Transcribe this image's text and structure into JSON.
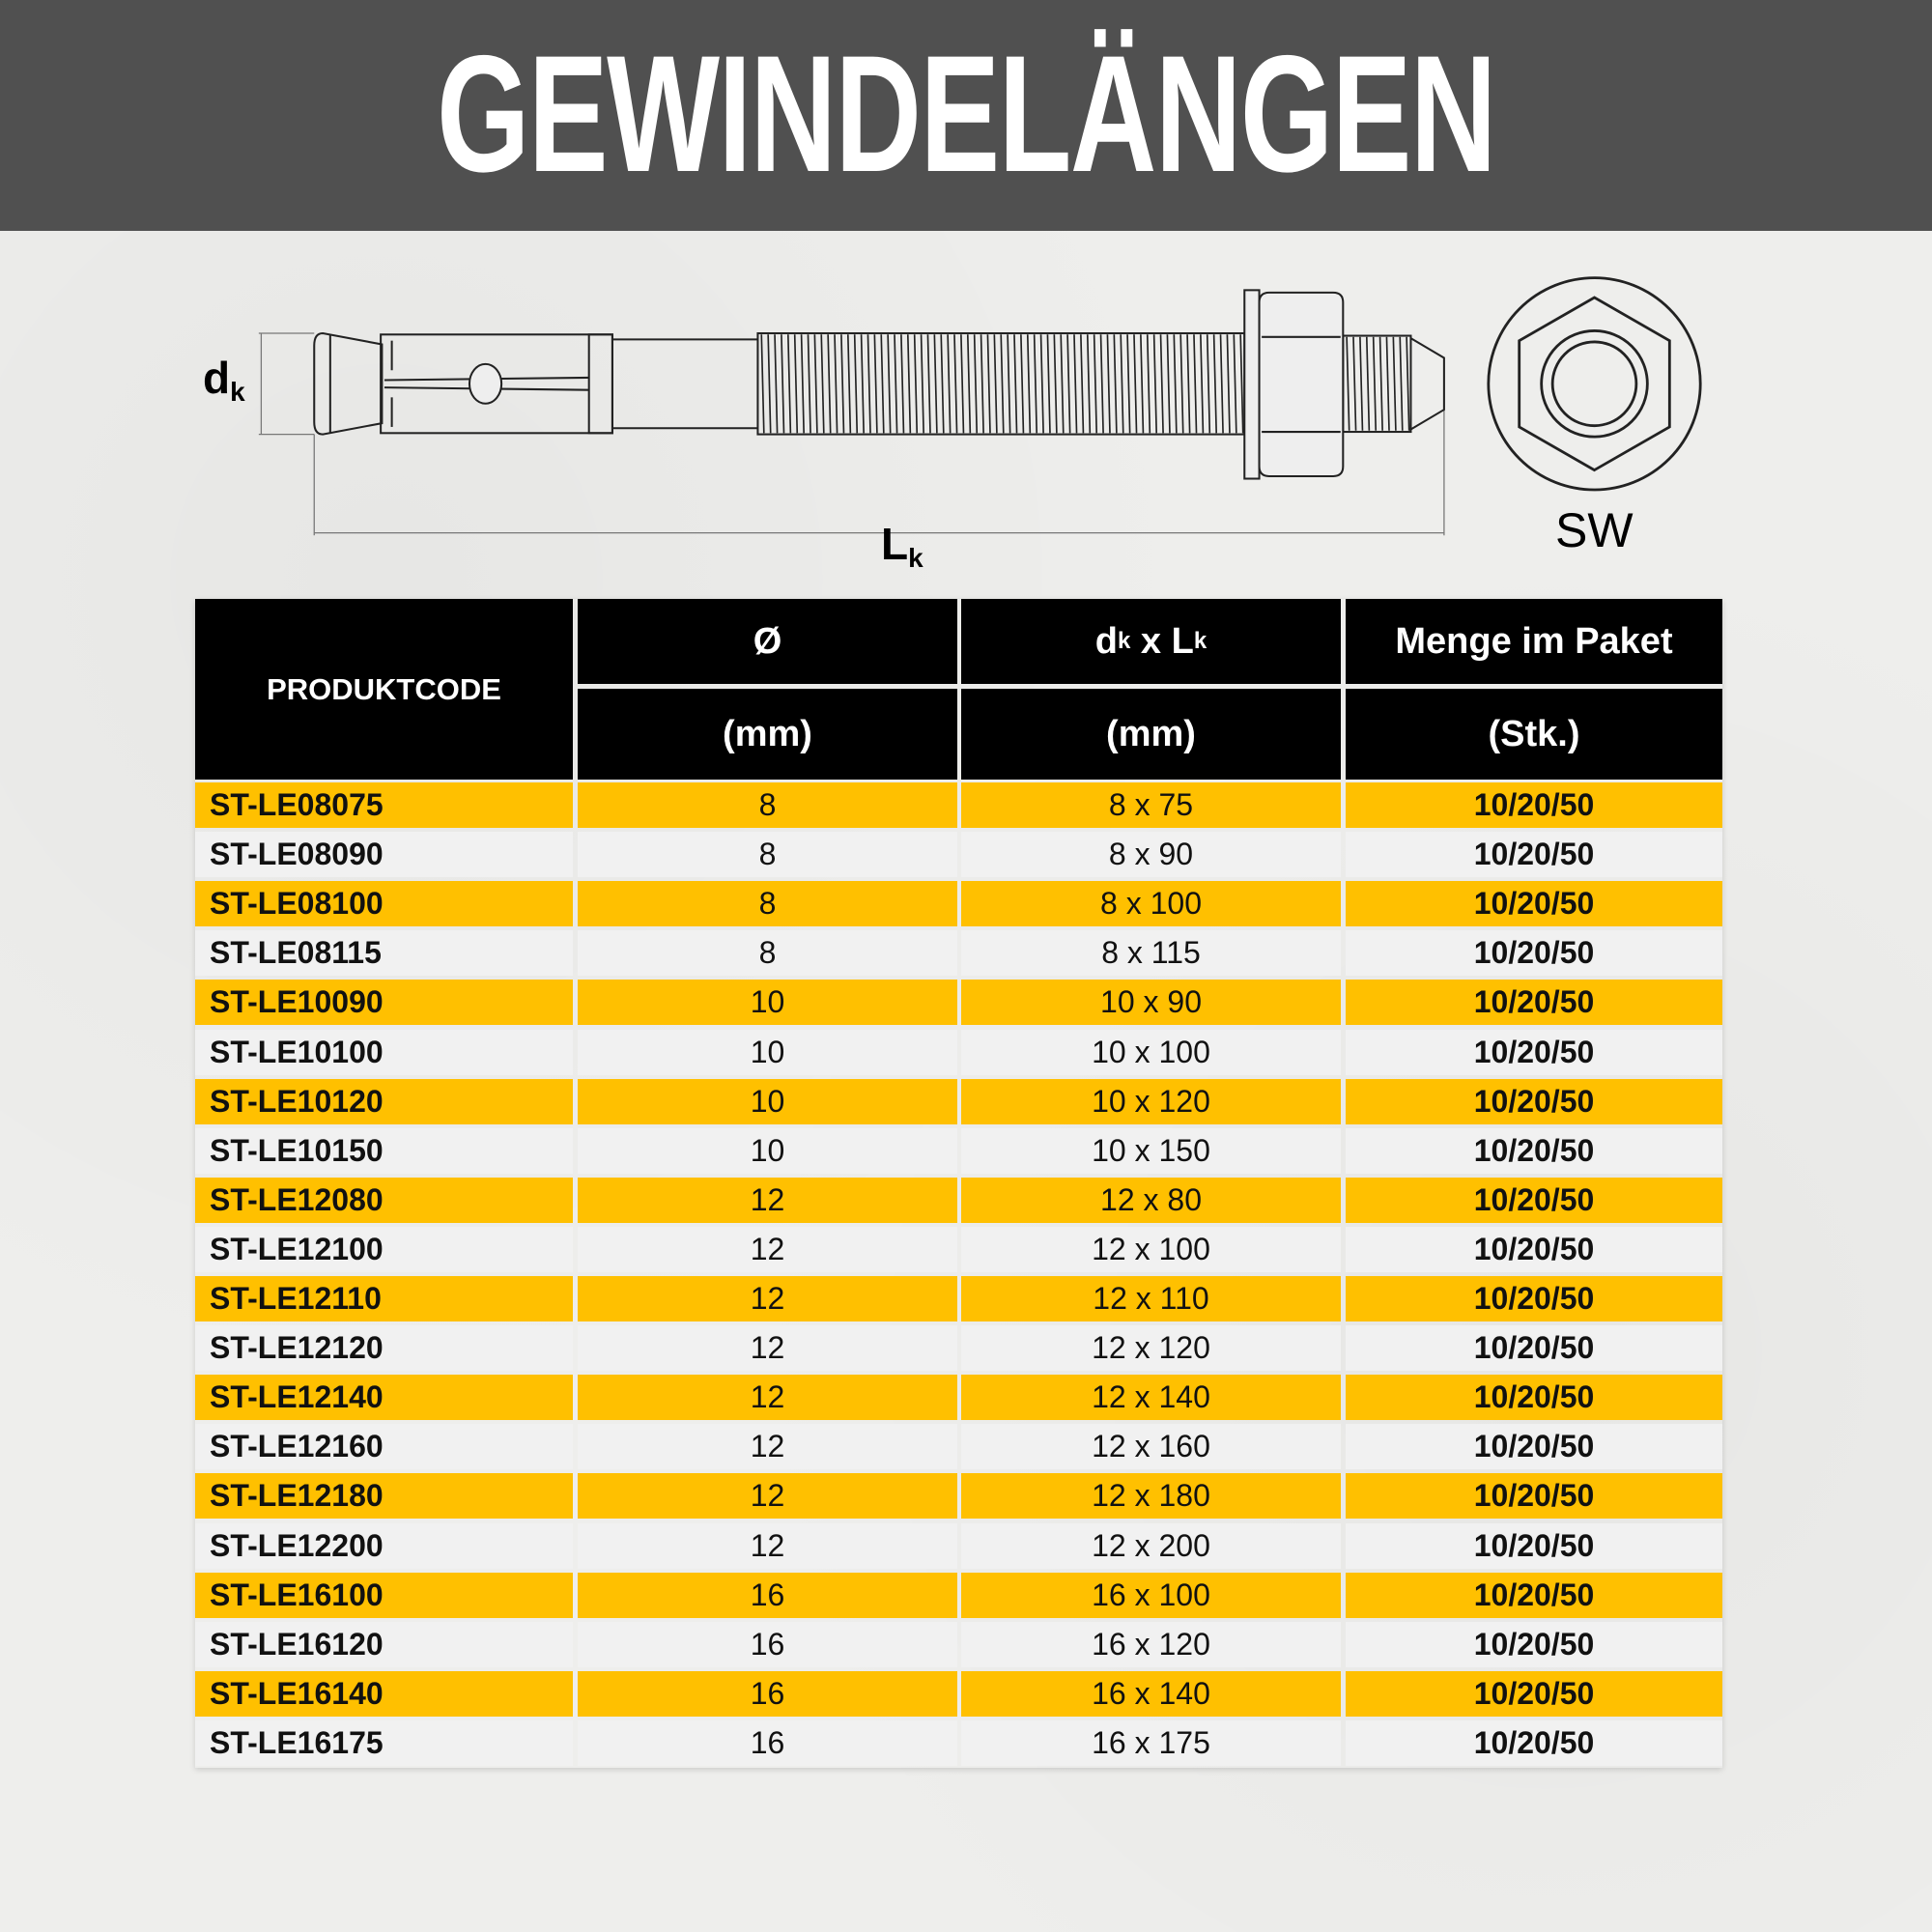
{
  "title": "GEWINDELÄNGEN",
  "colors": {
    "header_bg": "#505050",
    "row_highlight": "#FFC000",
    "row_plain": "#F1F1F1",
    "table_header": "#000000"
  },
  "diagram": {
    "dk": {
      "main": "d",
      "sub": "k"
    },
    "lk": {
      "main": "L",
      "sub": "k"
    },
    "sw": "SW"
  },
  "table": {
    "headers": {
      "code": "PRODUKTCODE",
      "diameter": "Ø",
      "diameter_unit": "(mm)",
      "size": {
        "d": "d",
        "k1": "k",
        "x": " x ",
        "L": "L",
        "k2": "k"
      },
      "size_unit": "(mm)",
      "qty": "Menge im Paket",
      "qty_unit": "(Stk.)"
    },
    "rows": [
      {
        "code": "ST-LE08075",
        "d": "8",
        "size": "8 x 75",
        "qty": "10/20/50"
      },
      {
        "code": "ST-LE08090",
        "d": "8",
        "size": "8 x 90",
        "qty": "10/20/50"
      },
      {
        "code": "ST-LE08100",
        "d": "8",
        "size": "8 x 100",
        "qty": "10/20/50"
      },
      {
        "code": "ST-LE08115",
        "d": "8",
        "size": "8 x 115",
        "qty": "10/20/50"
      },
      {
        "code": "ST-LE10090",
        "d": "10",
        "size": "10 x 90",
        "qty": "10/20/50"
      },
      {
        "code": "ST-LE10100",
        "d": "10",
        "size": "10 x 100",
        "qty": "10/20/50"
      },
      {
        "code": "ST-LE10120",
        "d": "10",
        "size": "10 x 120",
        "qty": "10/20/50"
      },
      {
        "code": "ST-LE10150",
        "d": "10",
        "size": "10 x 150",
        "qty": "10/20/50"
      },
      {
        "code": "ST-LE12080",
        "d": "12",
        "size": "12 x 80",
        "qty": "10/20/50"
      },
      {
        "code": "ST-LE12100",
        "d": "12",
        "size": "12 x 100",
        "qty": "10/20/50"
      },
      {
        "code": "ST-LE12110",
        "d": "12",
        "size": "12 x 110",
        "qty": "10/20/50"
      },
      {
        "code": "ST-LE12120",
        "d": "12",
        "size": "12 x 120",
        "qty": "10/20/50"
      },
      {
        "code": "ST-LE12140",
        "d": "12",
        "size": "12 x 140",
        "qty": "10/20/50"
      },
      {
        "code": "ST-LE12160",
        "d": "12",
        "size": "12 x 160",
        "qty": "10/20/50"
      },
      {
        "code": "ST-LE12180",
        "d": "12",
        "size": "12 x 180",
        "qty": "10/20/50"
      },
      {
        "code": "ST-LE12200",
        "d": "12",
        "size": "12 x 200",
        "qty": "10/20/50"
      },
      {
        "code": "ST-LE16100",
        "d": "16",
        "size": "16 x 100",
        "qty": "10/20/50"
      },
      {
        "code": "ST-LE16120",
        "d": "16",
        "size": "16 x 120",
        "qty": "10/20/50"
      },
      {
        "code": "ST-LE16140",
        "d": "16",
        "size": "16 x 140",
        "qty": "10/20/50"
      },
      {
        "code": "ST-LE16175",
        "d": "16",
        "size": "16 x 175",
        "qty": "10/20/50"
      }
    ]
  }
}
